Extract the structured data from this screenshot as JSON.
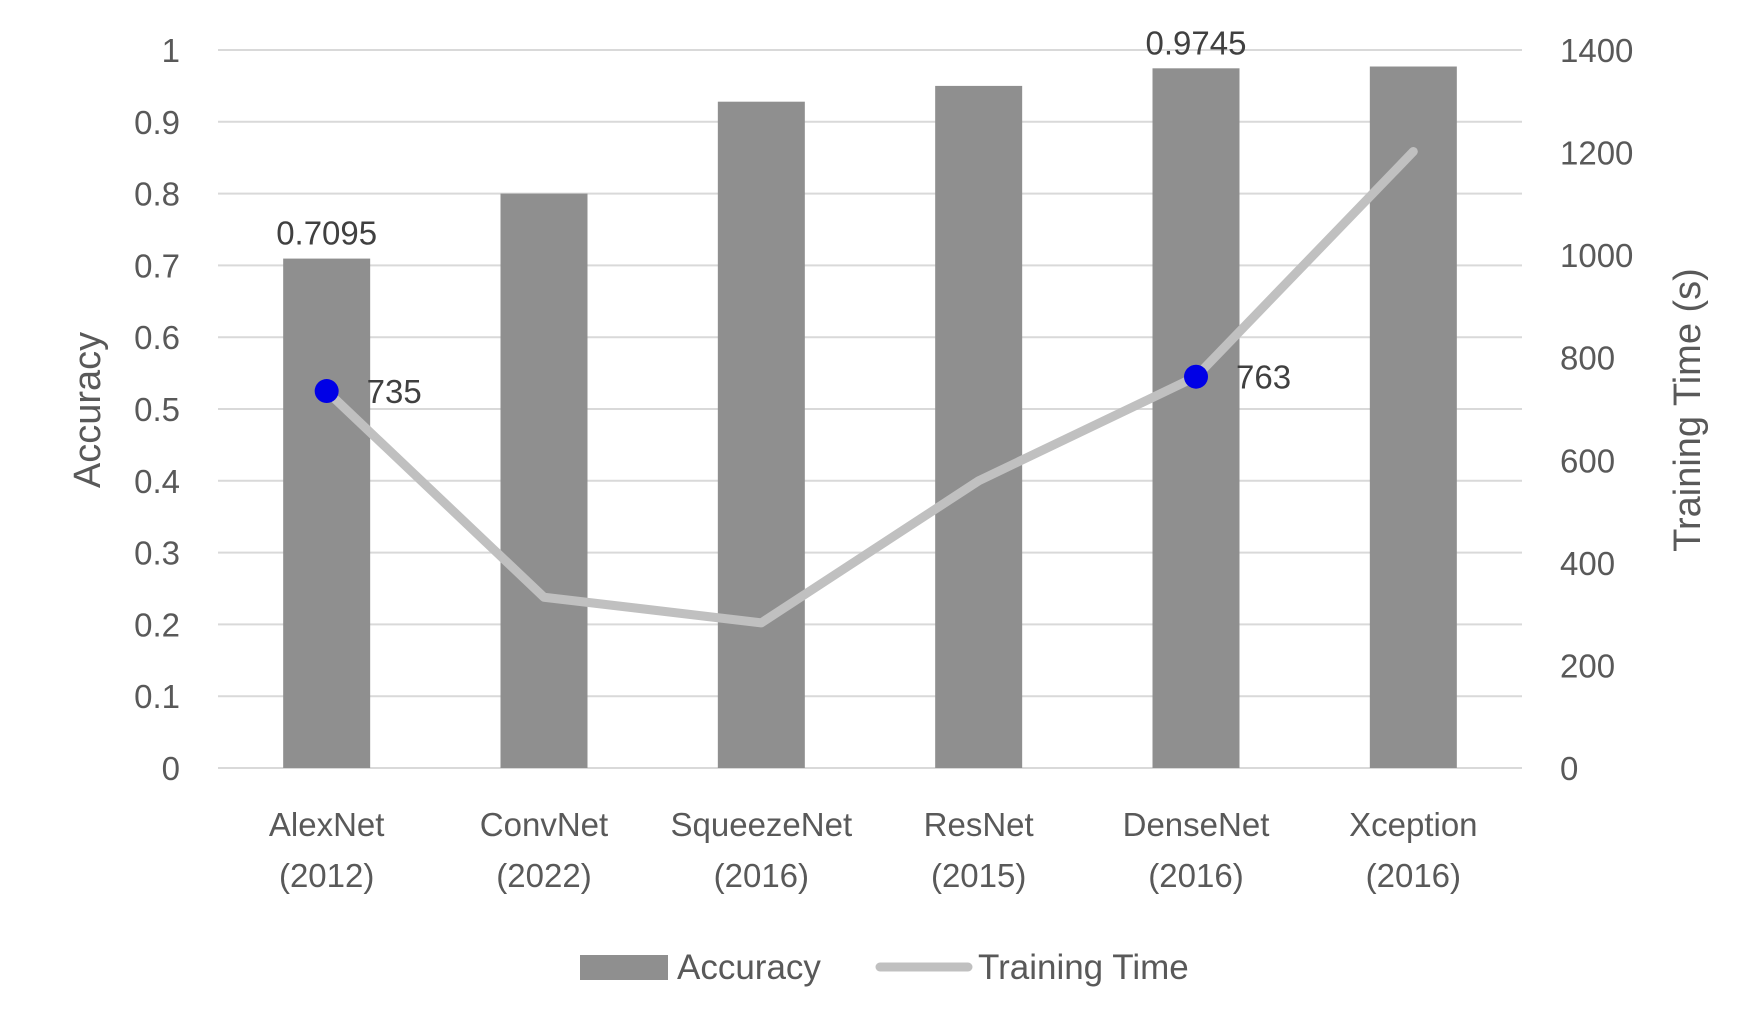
{
  "chart_data": {
    "type": "bar",
    "categories": [
      [
        "AlexNet",
        "(2012)"
      ],
      [
        "ConvNet",
        "(2022)"
      ],
      [
        "SqueezeNet",
        "(2016)"
      ],
      [
        "ResNet",
        "(2015)"
      ],
      [
        "DenseNet",
        "(2016)"
      ],
      [
        "Xception",
        "(2016)"
      ]
    ],
    "series": [
      {
        "name": "Accuracy",
        "type": "bar",
        "axis": "left",
        "color": "#8f8f8f",
        "values": [
          0.7095,
          0.8,
          0.928,
          0.95,
          0.9745,
          0.977
        ],
        "data_labels": [
          {
            "index": 0,
            "text": "0.7095"
          },
          {
            "index": 4,
            "text": "0.9745"
          }
        ]
      },
      {
        "name": "Training Time",
        "type": "line",
        "axis": "right",
        "color": "#c0c0c0",
        "values": [
          735,
          333,
          283,
          560,
          763,
          1202
        ],
        "markers": [
          {
            "index": 0,
            "text": "735",
            "color": "#0000e6"
          },
          {
            "index": 4,
            "text": "763",
            "color": "#0000e6"
          }
        ]
      }
    ],
    "y_left": {
      "label": "Accuracy",
      "ylim": [
        0,
        1
      ],
      "ticks": [
        "0",
        "0.1",
        "0.2",
        "0.3",
        "0.4",
        "0.5",
        "0.6",
        "0.7",
        "0.8",
        "0.9",
        "1"
      ]
    },
    "y_right": {
      "label": "Training Time (s)",
      "ylim": [
        0,
        1400
      ],
      "ticks": [
        "0",
        "200",
        "400",
        "600",
        "800",
        "1000",
        "1200",
        "1400"
      ]
    },
    "grid": true,
    "legend": {
      "position": "bottom",
      "entries": [
        "Accuracy",
        "Training Time"
      ]
    }
  }
}
